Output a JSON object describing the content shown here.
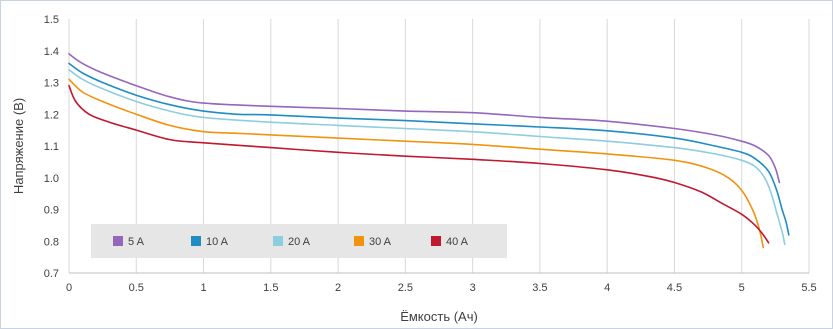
{
  "chart_data": {
    "type": "line",
    "title": "",
    "xlabel": "Ёмкость (Ач)",
    "ylabel": "Напряжение (В)",
    "xlim": [
      0,
      5.5
    ],
    "ylim": [
      0.7,
      1.5
    ],
    "x_ticks": [
      "0",
      "0.5",
      "1",
      "1.5",
      "2",
      "2.5",
      "3",
      "3.5",
      "4",
      "4.5",
      "5",
      "5.5"
    ],
    "y_ticks": [
      "0.7",
      "0.8",
      "0.9",
      "1.0",
      "1.1",
      "1.2",
      "1.3",
      "1.4",
      "1.5"
    ],
    "grid": "vertical",
    "legend_position": "bottom-left inside",
    "series": [
      {
        "name": "5 A",
        "color": "#9467bd",
        "points": [
          [
            0,
            1.39
          ],
          [
            0.1,
            1.36
          ],
          [
            0.25,
            1.33
          ],
          [
            0.5,
            1.29
          ],
          [
            0.75,
            1.255
          ],
          [
            1.0,
            1.235
          ],
          [
            1.5,
            1.225
          ],
          [
            2.0,
            1.218
          ],
          [
            2.5,
            1.21
          ],
          [
            3.0,
            1.205
          ],
          [
            3.5,
            1.19
          ],
          [
            4.0,
            1.178
          ],
          [
            4.5,
            1.155
          ],
          [
            4.8,
            1.135
          ],
          [
            5.0,
            1.115
          ],
          [
            5.1,
            1.1
          ],
          [
            5.2,
            1.07
          ],
          [
            5.25,
            1.03
          ],
          [
            5.28,
            0.985
          ]
        ]
      },
      {
        "name": "10 A",
        "color": "#1f8dc4",
        "points": [
          [
            0,
            1.36
          ],
          [
            0.1,
            1.33
          ],
          [
            0.25,
            1.3
          ],
          [
            0.5,
            1.26
          ],
          [
            0.75,
            1.23
          ],
          [
            1.0,
            1.21
          ],
          [
            1.25,
            1.2
          ],
          [
            1.5,
            1.198
          ],
          [
            2.0,
            1.188
          ],
          [
            2.5,
            1.18
          ],
          [
            3.0,
            1.17
          ],
          [
            3.5,
            1.16
          ],
          [
            4.0,
            1.148
          ],
          [
            4.5,
            1.125
          ],
          [
            4.8,
            1.1
          ],
          [
            5.0,
            1.08
          ],
          [
            5.1,
            1.06
          ],
          [
            5.2,
            1.02
          ],
          [
            5.26,
            0.96
          ],
          [
            5.3,
            0.9
          ],
          [
            5.33,
            0.86
          ],
          [
            5.35,
            0.82
          ]
        ]
      },
      {
        "name": "20 A",
        "color": "#8ecde0",
        "points": [
          [
            0,
            1.34
          ],
          [
            0.1,
            1.31
          ],
          [
            0.25,
            1.28
          ],
          [
            0.5,
            1.24
          ],
          [
            0.75,
            1.21
          ],
          [
            1.0,
            1.19
          ],
          [
            1.5,
            1.175
          ],
          [
            2.0,
            1.165
          ],
          [
            2.5,
            1.155
          ],
          [
            3.0,
            1.145
          ],
          [
            3.5,
            1.13
          ],
          [
            4.0,
            1.115
          ],
          [
            4.5,
            1.095
          ],
          [
            4.8,
            1.075
          ],
          [
            5.0,
            1.055
          ],
          [
            5.1,
            1.035
          ],
          [
            5.17,
            1.0
          ],
          [
            5.22,
            0.95
          ],
          [
            5.26,
            0.89
          ],
          [
            5.3,
            0.83
          ],
          [
            5.32,
            0.79
          ]
        ]
      },
      {
        "name": "30 A",
        "color": "#f2930f",
        "points": [
          [
            0,
            1.31
          ],
          [
            0.1,
            1.27
          ],
          [
            0.25,
            1.24
          ],
          [
            0.5,
            1.2
          ],
          [
            0.75,
            1.165
          ],
          [
            1.0,
            1.145
          ],
          [
            1.25,
            1.14
          ],
          [
            1.5,
            1.135
          ],
          [
            2.0,
            1.125
          ],
          [
            2.5,
            1.115
          ],
          [
            3.0,
            1.105
          ],
          [
            3.5,
            1.09
          ],
          [
            4.0,
            1.075
          ],
          [
            4.5,
            1.055
          ],
          [
            4.75,
            1.03
          ],
          [
            4.9,
            1.0
          ],
          [
            5.0,
            0.96
          ],
          [
            5.08,
            0.9
          ],
          [
            5.13,
            0.84
          ],
          [
            5.16,
            0.78
          ]
        ]
      },
      {
        "name": "40 A",
        "color": "#c0182f",
        "points": [
          [
            0,
            1.29
          ],
          [
            0.05,
            1.24
          ],
          [
            0.15,
            1.2
          ],
          [
            0.3,
            1.175
          ],
          [
            0.5,
            1.15
          ],
          [
            0.75,
            1.12
          ],
          [
            1.0,
            1.11
          ],
          [
            1.5,
            1.095
          ],
          [
            2.0,
            1.08
          ],
          [
            2.5,
            1.068
          ],
          [
            3.0,
            1.058
          ],
          [
            3.5,
            1.045
          ],
          [
            4.0,
            1.025
          ],
          [
            4.3,
            1.005
          ],
          [
            4.5,
            0.985
          ],
          [
            4.7,
            0.955
          ],
          [
            4.85,
            0.92
          ],
          [
            5.0,
            0.885
          ],
          [
            5.1,
            0.85
          ],
          [
            5.16,
            0.82
          ],
          [
            5.2,
            0.795
          ]
        ]
      }
    ]
  }
}
